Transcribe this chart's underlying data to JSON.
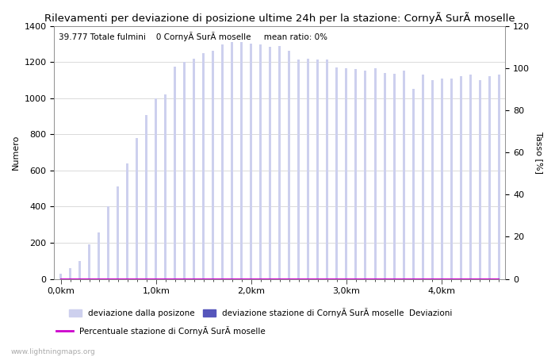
{
  "title": "Rilevamenti per deviazione di posizione ultime 24h per la stazione: CornyÃ SurÃ moselle",
  "subtitle": "39.777 Totale fulmini    0 CornyÃ SurÃ moselle     mean ratio: 0%",
  "ylabel_left": "Numero",
  "ylabel_right": "Tasso [%]",
  "background_color": "#ffffff",
  "bar_color_light": "#cdd0ee",
  "bar_color_dark": "#5555bb",
  "line_color": "#cc00cc",
  "grid_color": "#cccccc",
  "ylim_left": [
    0,
    1400
  ],
  "ylim_right": [
    0,
    120
  ],
  "yticks_left": [
    0,
    200,
    400,
    600,
    800,
    1000,
    1200,
    1400
  ],
  "yticks_right": [
    0,
    20,
    40,
    60,
    80,
    100,
    120
  ],
  "xtick_labels": [
    "0,0km",
    "1,0km",
    "2,0km",
    "3,0km",
    "4,0km"
  ],
  "xtick_positions": [
    0,
    10,
    20,
    30,
    40
  ],
  "n_bars": 47,
  "bar_values": [
    30,
    60,
    100,
    190,
    255,
    400,
    510,
    640,
    780,
    905,
    1000,
    1020,
    1175,
    1200,
    1220,
    1250,
    1260,
    1295,
    1310,
    1310,
    1300,
    1295,
    1285,
    1290,
    1260,
    1215,
    1220,
    1215,
    1215,
    1170,
    1165,
    1160,
    1150,
    1165,
    1140,
    1135,
    1150,
    1050,
    1130,
    1100,
    1110,
    1110,
    1120,
    1130,
    1100,
    1120,
    1130
  ],
  "station_bar_values": [
    0,
    0,
    0,
    0,
    0,
    0,
    0,
    0,
    0,
    0,
    0,
    0,
    0,
    0,
    0,
    0,
    0,
    0,
    0,
    0,
    0,
    0,
    0,
    0,
    0,
    0,
    0,
    0,
    0,
    0,
    0,
    0,
    0,
    0,
    0,
    0,
    0,
    0,
    0,
    0,
    0,
    0,
    0,
    0,
    0,
    0,
    0
  ],
  "line_values": [
    0,
    0,
    0,
    0,
    0,
    0,
    0,
    0,
    0,
    0,
    0,
    0,
    0,
    0,
    0,
    0,
    0,
    0,
    0,
    0,
    0,
    0,
    0,
    0,
    0,
    0,
    0,
    0,
    0,
    0,
    0,
    0,
    0,
    0,
    0,
    0,
    0,
    0,
    0,
    0,
    0,
    0,
    0,
    0,
    0,
    0,
    0
  ],
  "legend_label_light": "deviazione dalla posizone",
  "legend_label_dark": "deviazione stazione di CornyÃ SurÃ moselle  Deviazioni",
  "legend_label_line": "Percentuale stazione di CornyÃ SurÃ moselle",
  "watermark": "www.lightningmaps.org",
  "title_fontsize": 9.5,
  "subtitle_fontsize": 7.5,
  "axis_fontsize": 8,
  "tick_fontsize": 8,
  "legend_fontsize": 7.5,
  "bar_width": 0.25
}
